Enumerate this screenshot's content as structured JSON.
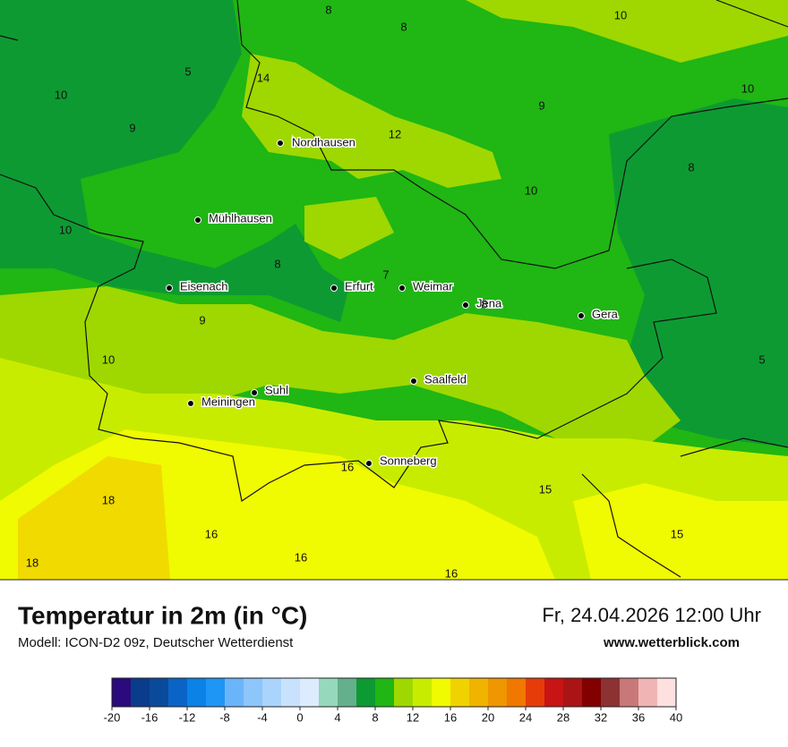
{
  "map": {
    "cities": [
      "Nordhausen",
      "Mühlhausen",
      "Eisenach",
      "Erfurt",
      "Weimar",
      "Jena",
      "Gera",
      "Saalfeld",
      "Suhl",
      "Meiningen",
      "Sonneberg"
    ],
    "temperatures": [
      8,
      8,
      10,
      5,
      14,
      10,
      9,
      12,
      9,
      10,
      8,
      10,
      10,
      8,
      7,
      8,
      9,
      10,
      5,
      16,
      15,
      18,
      16,
      16,
      15,
      18,
      16
    ]
  },
  "header": {
    "title": "Temperatur in 2m (in °C)",
    "model": "Modell: ICON-D2 09z, Deutscher Wetterdienst",
    "datetime": "Fr, 24.04.2026 12:00 Uhr",
    "website": "www.wetterblick.com"
  },
  "legend": {
    "colors": [
      "#2b0a7d",
      "#0a3c8c",
      "#0a4a9a",
      "#0a64c8",
      "#0a82e6",
      "#1e96f5",
      "#6ab4fa",
      "#8cc6fb",
      "#aad4fc",
      "#c8e2fd",
      "#dcecfe",
      "#96d8bc",
      "#64b08c",
      "#0e9a32",
      "#20b614",
      "#9ed800",
      "#c8ec00",
      "#f0fa00",
      "#f0d200",
      "#f0b400",
      "#f09600",
      "#f07800",
      "#e63c0a",
      "#c81414",
      "#aa1414",
      "#820000",
      "#8c3232",
      "#c87878",
      "#f0b4b4",
      "#ffe0e0"
    ],
    "ticks": [
      -20,
      -16,
      -12,
      -8,
      -4,
      0,
      4,
      8,
      12,
      16,
      20,
      24,
      28,
      32,
      36,
      40
    ]
  }
}
